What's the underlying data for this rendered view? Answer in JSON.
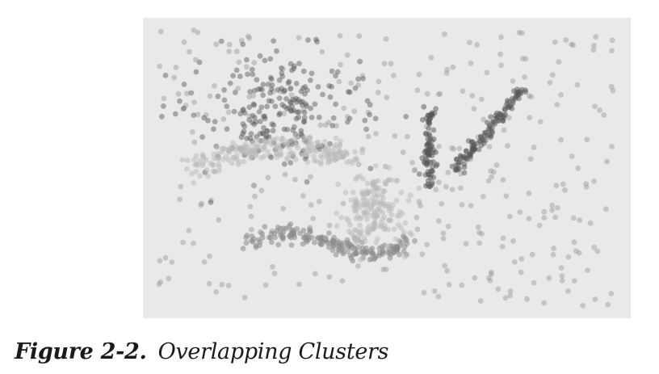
{
  "figure": {
    "label": "Figure 2-2.",
    "title": "Overlapping Clusters"
  },
  "plot": {
    "background": "#e9e9e9",
    "colors": {
      "noise": "#9a9a9a",
      "dark_cluster": "#555555",
      "light_cluster": "#b9b9b9",
      "mid_cluster": "#8a8a8a"
    }
  }
}
